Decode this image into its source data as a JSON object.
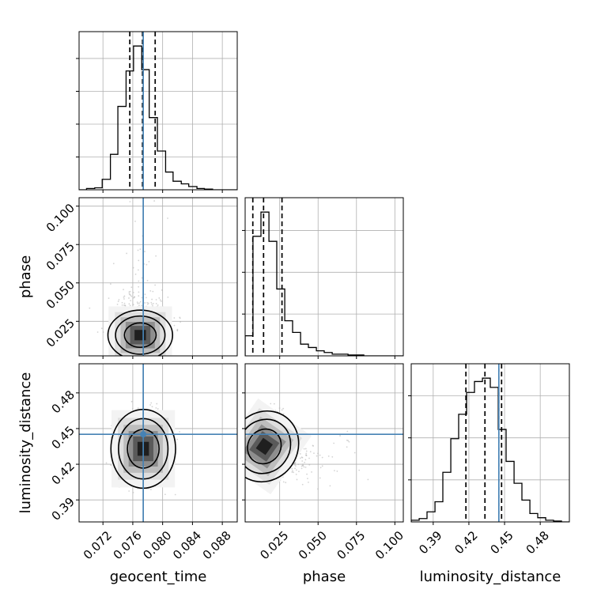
{
  "chart_data": {
    "type": "corner",
    "parameters": [
      "geocent_time",
      "phase",
      "luminosity_distance"
    ],
    "axis_labels": {
      "geocent_time": "geocent_time",
      "phase": "phase",
      "luminosity_distance": "luminosity_distance"
    },
    "ranges": {
      "geocent_time": [
        0.0688,
        0.09
      ],
      "phase": [
        0.0025,
        0.1055
      ],
      "luminosity_distance": [
        0.3715,
        0.5045
      ]
    },
    "ticks": {
      "geocent_time": [
        {
          "value": 0.072,
          "label": "0.072"
        },
        {
          "value": 0.076,
          "label": "0.076"
        },
        {
          "value": 0.08,
          "label": "0.080"
        },
        {
          "value": 0.084,
          "label": "0.084"
        },
        {
          "value": 0.088,
          "label": "0.088"
        }
      ],
      "phase": [
        {
          "value": 0.025,
          "label": "0.025"
        },
        {
          "value": 0.05,
          "label": "0.050"
        },
        {
          "value": 0.075,
          "label": "0.075"
        },
        {
          "value": 0.1,
          "label": "0.100"
        }
      ],
      "luminosity_distance": [
        {
          "value": 0.39,
          "label": "0.39"
        },
        {
          "value": 0.42,
          "label": "0.42"
        },
        {
          "value": 0.45,
          "label": "0.45"
        },
        {
          "value": 0.48,
          "label": "0.48"
        }
      ]
    },
    "truths": {
      "geocent_time": 0.0774,
      "luminosity_distance": 0.4452
    },
    "truth_color": "#4682b4",
    "quantiles": {
      "geocent_time": [
        0.0756,
        0.0773,
        0.079
      ],
      "phase": [
        0.0075,
        0.0145,
        0.0265
      ],
      "luminosity_distance": [
        0.4175,
        0.4335,
        0.4475
      ]
    },
    "histograms": {
      "geocent_time": {
        "edges": [
          0.0688,
          0.0698,
          0.0709,
          0.0719,
          0.073,
          0.074,
          0.0751,
          0.0761,
          0.0772,
          0.0782,
          0.0793,
          0.0804,
          0.0814,
          0.0825,
          0.0835,
          0.0846,
          0.0856,
          0.0867,
          0.0878,
          0.0888,
          0.09
        ],
        "counts": [
          0,
          2,
          3,
          16,
          54,
          127,
          181,
          219,
          183,
          110,
          59,
          27,
          13,
          9,
          5,
          2,
          1,
          0,
          0,
          0
        ]
      },
      "phase": {
        "edges": [
          0.0025,
          0.0076,
          0.0128,
          0.018,
          0.0231,
          0.0283,
          0.0334,
          0.0386,
          0.0437,
          0.0489,
          0.054,
          0.0592,
          0.0643,
          0.0695,
          0.0746,
          0.0798,
          0.0849,
          0.0901,
          0.0952,
          0.1004,
          0.1055
        ],
        "counts": [
          24,
          143,
          172,
          137,
          80,
          42,
          28,
          14,
          10,
          6,
          4,
          2,
          2,
          1,
          1,
          0,
          0,
          0,
          0,
          0
        ]
      },
      "luminosity_distance": {
        "edges": [
          0.3715,
          0.3782,
          0.3848,
          0.3915,
          0.3981,
          0.4048,
          0.4114,
          0.4181,
          0.4247,
          0.4314,
          0.438,
          0.4447,
          0.4513,
          0.458,
          0.4646,
          0.4713,
          0.4779,
          0.4846,
          0.4912,
          0.4979,
          0.5045
        ],
        "counts": [
          2,
          4,
          12,
          24,
          59,
          99,
          128,
          154,
          167,
          171,
          160,
          110,
          72,
          46,
          26,
          10,
          5,
          2,
          1,
          0
        ]
      }
    },
    "peaks": {
      "geocent_time|phase": [
        0.077,
        0.016
      ],
      "geocent_time|luminosity_distance": [
        0.0774,
        0.433
      ],
      "phase|luminosity_distance": [
        0.015,
        0.435
      ]
    },
    "grid": true,
    "colors": {
      "histogram": "#000000",
      "contour": "#000000",
      "scatter": "#b0b0b0",
      "grid": "#b0b0b0"
    }
  }
}
